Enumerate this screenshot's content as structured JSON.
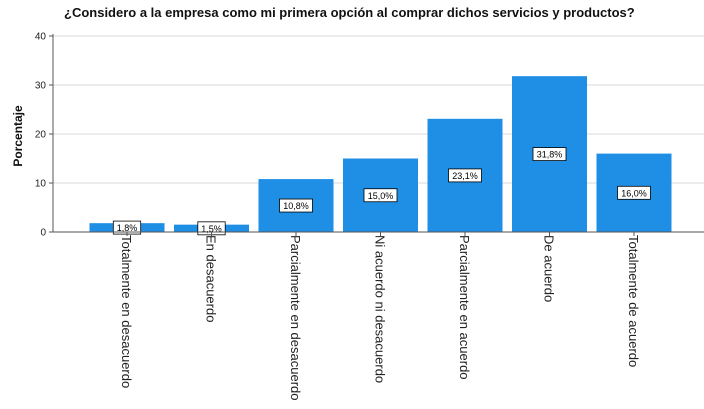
{
  "chart_data": {
    "type": "bar",
    "title": "¿Considero a la empresa como mi primera opción al comprar dichos servicios y productos?",
    "xlabel": "",
    "ylabel": "Porcentaje",
    "ylim": [
      0,
      40
    ],
    "yticks": [
      0,
      10,
      20,
      30,
      40
    ],
    "grid": true,
    "categories": [
      "Totalmente en desacuerdo",
      "En desacuerdo",
      "Parcialmente en desacuerdo",
      "Ni acuerdo ni desacuerdo",
      "Parcialmente en acuerdo",
      "De acuerdo",
      "Totalmente de acuerdo"
    ],
    "values": [
      1.8,
      1.5,
      10.8,
      15.0,
      23.1,
      31.8,
      16.0
    ],
    "data_labels": [
      "1,8%",
      "1,5%",
      "10,8%",
      "15,0%",
      "23,1%",
      "31,8%",
      "16,0%"
    ],
    "bar_color": "#1f8fe5",
    "grid_color": "#d9d9d9"
  }
}
